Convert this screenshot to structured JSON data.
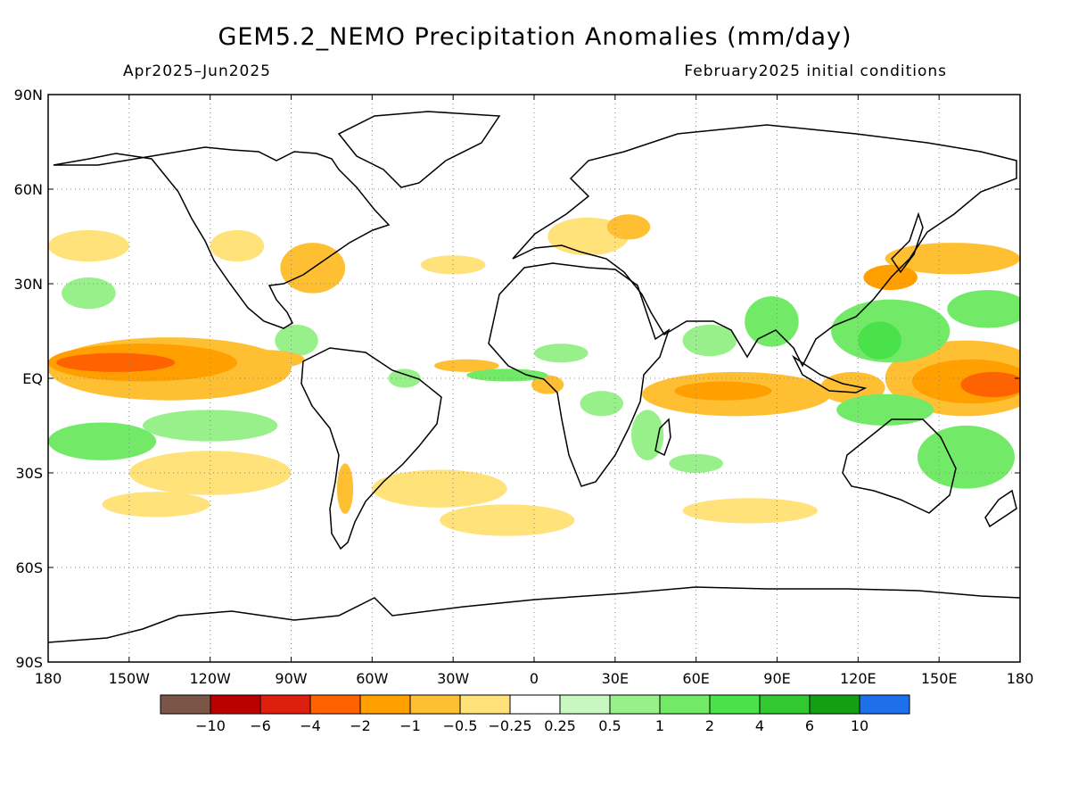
{
  "header": {
    "title": "GEM5.2_NEMO Precipitation Anomalies (mm/day)",
    "period": "Apr2025–Jun2025",
    "initial_conditions": "February2025 initial conditions"
  },
  "axes": {
    "lat_labels": [
      "90N",
      "60N",
      "30N",
      "EQ",
      "30S",
      "60S",
      "90S"
    ],
    "lat_values": [
      90,
      60,
      30,
      0,
      -30,
      -60,
      -90
    ],
    "lon_labels": [
      "180",
      "150W",
      "120W",
      "90W",
      "60W",
      "30W",
      "0",
      "30E",
      "60E",
      "90E",
      "120E",
      "150E",
      "180"
    ],
    "lon_values": [
      -180,
      -150,
      -120,
      -90,
      -60,
      -30,
      0,
      30,
      60,
      90,
      120,
      150,
      180
    ],
    "grid": "dotted"
  },
  "colorbar": {
    "colors": [
      "#7a5548",
      "#bb0000",
      "#dd1f10",
      "#ff6200",
      "#ff9f00",
      "#ffbf33",
      "#ffe27a",
      "#ffffff",
      "#c8f8bf",
      "#98f08a",
      "#72ea68",
      "#4ae24a",
      "#32c832",
      "#12a012",
      "#1e70ea"
    ],
    "labels": [
      "−10",
      "−6",
      "−4",
      "−2",
      "−1",
      "−0.5",
      "−0.25",
      "0.25",
      "0.5",
      "1",
      "2",
      "4",
      "6",
      "10"
    ]
  },
  "anomaly_regions": [
    {
      "name": "central-pacific-dry-core",
      "level": -4,
      "lon": -155,
      "lat": 5,
      "rx": 22,
      "ry": 3
    },
    {
      "name": "central-pacific-dry-band",
      "level": -2,
      "lon": -145,
      "lat": 5,
      "rx": 35,
      "ry": 6
    },
    {
      "name": "central-pacific-dry-wide",
      "level": -1,
      "lon": -135,
      "lat": 3,
      "rx": 45,
      "ry": 10
    },
    {
      "name": "pacific-itcz-dry-east",
      "level": -1,
      "lon": -100,
      "lat": 6,
      "rx": 15,
      "ry": 3
    },
    {
      "name": "west-pacific-dry-core",
      "level": -4,
      "lon": 170,
      "lat": -2,
      "rx": 12,
      "ry": 4
    },
    {
      "name": "west-pacific-dry-band",
      "level": -2,
      "lon": 162,
      "lat": -1,
      "rx": 22,
      "ry": 7
    },
    {
      "name": "west-pacific-dry-wide",
      "level": -1,
      "lon": 160,
      "lat": 0,
      "rx": 30,
      "ry": 12
    },
    {
      "name": "indian-ocean-dry",
      "level": -1,
      "lon": 75,
      "lat": -5,
      "rx": 35,
      "ry": 7
    },
    {
      "name": "indian-ocean-dry-core",
      "level": -2,
      "lon": 70,
      "lat": -4,
      "rx": 18,
      "ry": 3
    },
    {
      "name": "maritime-dry",
      "level": -1,
      "lon": 118,
      "lat": -3,
      "rx": 12,
      "ry": 5
    },
    {
      "name": "gulf-guinea-dry",
      "level": -1,
      "lon": 5,
      "lat": -2,
      "rx": 6,
      "ry": 3
    },
    {
      "name": "atlantic-itcz-dry",
      "level": -1,
      "lon": -25,
      "lat": 4,
      "rx": 12,
      "ry": 2
    },
    {
      "name": "south-america-dry",
      "level": -0.5,
      "lon": -35,
      "lat": -35,
      "rx": 25,
      "ry": 6
    },
    {
      "name": "south-atlantic-dry",
      "level": -0.5,
      "lon": -10,
      "lat": -45,
      "rx": 25,
      "ry": 5
    },
    {
      "name": "south-pacific-dry",
      "level": -0.5,
      "lon": -120,
      "lat": -30,
      "rx": 30,
      "ry": 7
    },
    {
      "name": "south-pacific-dry-west",
      "level": -0.5,
      "lon": -140,
      "lat": -40,
      "rx": 20,
      "ry": 4
    },
    {
      "name": "south-indian-dry",
      "level": -0.5,
      "lon": 80,
      "lat": -42,
      "rx": 25,
      "ry": 4
    },
    {
      "name": "eastern-us-dry",
      "level": -1,
      "lon": -82,
      "lat": 35,
      "rx": 12,
      "ry": 8
    },
    {
      "name": "western-us-dry",
      "level": -0.5,
      "lon": -110,
      "lat": 42,
      "rx": 10,
      "ry": 5
    },
    {
      "name": "europe-dry",
      "level": -0.5,
      "lon": 20,
      "lat": 45,
      "rx": 15,
      "ry": 6
    },
    {
      "name": "black-sea-dry",
      "level": -1,
      "lon": 35,
      "lat": 48,
      "rx": 8,
      "ry": 4
    },
    {
      "name": "north-pacific-dry",
      "level": -1,
      "lon": 155,
      "lat": 38,
      "rx": 25,
      "ry": 5
    },
    {
      "name": "japan-dry",
      "level": -2,
      "lon": 132,
      "lat": 32,
      "rx": 10,
      "ry": 4
    },
    {
      "name": "northeast-pacific-dry",
      "level": -0.5,
      "lon": -165,
      "lat": 42,
      "rx": 15,
      "ry": 5
    },
    {
      "name": "argentina-dry",
      "level": -1,
      "lon": -70,
      "lat": -35,
      "rx": 3,
      "ry": 8
    },
    {
      "name": "east-atlantic-dry",
      "level": -0.5,
      "lon": -30,
      "lat": 36,
      "rx": 12,
      "ry": 3
    },
    {
      "name": "western-pacific-wet",
      "level": 1,
      "lon": 132,
      "lat": 15,
      "rx": 22,
      "ry": 10
    },
    {
      "name": "western-pacific-wet-core",
      "level": 2,
      "lon": 128,
      "lat": 12,
      "rx": 8,
      "ry": 6
    },
    {
      "name": "north-pacific-wet",
      "level": 1,
      "lon": 168,
      "lat": 22,
      "rx": 15,
      "ry": 6
    },
    {
      "name": "bay-bengal-wet",
      "level": 1,
      "lon": 88,
      "lat": 18,
      "rx": 10,
      "ry": 8
    },
    {
      "name": "arabian-sea-wet",
      "level": 0.5,
      "lon": 65,
      "lat": 12,
      "rx": 10,
      "ry": 5
    },
    {
      "name": "east-atlantic-wet",
      "level": 1,
      "lon": -10,
      "lat": 1,
      "rx": 15,
      "ry": 2
    },
    {
      "name": "guinea-wet",
      "level": 0.5,
      "lon": 10,
      "lat": 8,
      "rx": 10,
      "ry": 3
    },
    {
      "name": "tropical-south-pacific-wet",
      "level": 1,
      "lon": -160,
      "lat": -20,
      "rx": 20,
      "ry": 6
    },
    {
      "name": "east-south-pacific-wet",
      "level": 0.5,
      "lon": -120,
      "lat": -15,
      "rx": 25,
      "ry": 5
    },
    {
      "name": "central-africa-wet",
      "level": 0.5,
      "lon": 25,
      "lat": -8,
      "rx": 8,
      "ry": 4
    },
    {
      "name": "east-africa-wet",
      "level": 0.5,
      "lon": 42,
      "lat": -18,
      "rx": 6,
      "ry": 8
    },
    {
      "name": "madagascar-wet",
      "level": 0.5,
      "lon": 60,
      "lat": -27,
      "rx": 10,
      "ry": 3
    },
    {
      "name": "south-maritime-wet",
      "level": 1,
      "lon": 130,
      "lat": -10,
      "rx": 18,
      "ry": 5
    },
    {
      "name": "southwest-pacific-wet",
      "level": 1,
      "lon": 160,
      "lat": -25,
      "rx": 18,
      "ry": 10
    },
    {
      "name": "central-america-wet",
      "level": 0.5,
      "lon": -88,
      "lat": 12,
      "rx": 8,
      "ry": 5
    },
    {
      "name": "hawaii-region-wet",
      "level": 0.5,
      "lon": -165,
      "lat": 27,
      "rx": 10,
      "ry": 5
    },
    {
      "name": "amazon-wet",
      "level": 0.5,
      "lon": -48,
      "lat": 0,
      "rx": 6,
      "ry": 3
    }
  ]
}
